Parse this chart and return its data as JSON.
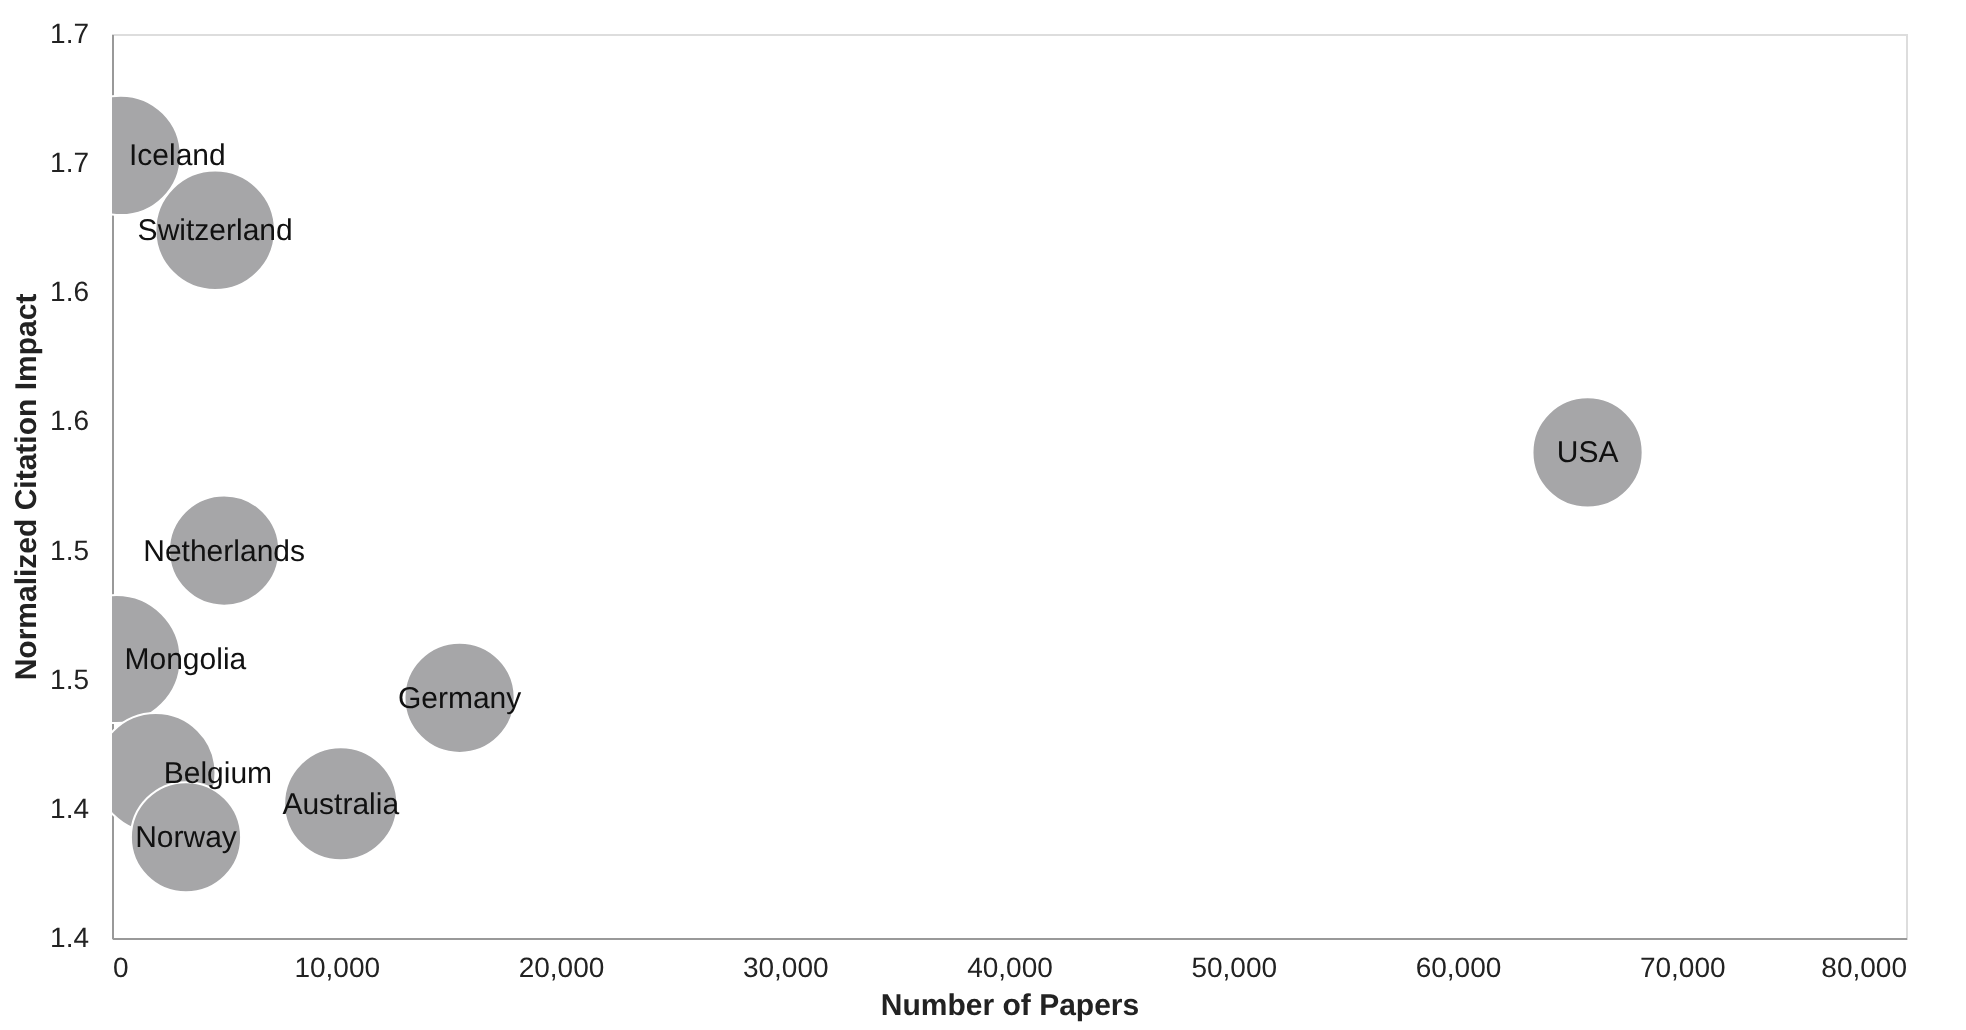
{
  "chart_data": {
    "type": "bubble",
    "xlabel": "Number of Papers",
    "ylabel": "Normalized Citation Impact",
    "x": [
      400,
      4600,
      5000,
      200,
      1950,
      3300,
      10200,
      15500,
      65800
    ],
    "values": [
      1.653,
      1.624,
      1.5,
      1.458,
      1.414,
      1.389,
      1.402,
      1.443,
      1.538
    ],
    "sizes": [
      0.87,
      0.87,
      0.74,
      1,
      0.87,
      0.74,
      0.78,
      0.74,
      0.74
    ],
    "color": "#a6a6a8",
    "annotations": [
      {
        "text": "Iceland",
        "x": 400,
        "y": 1.653
      },
      {
        "text": "Switzerland",
        "x": 4600,
        "y": 1.624
      },
      {
        "text": "Netherlands",
        "x": 5000,
        "y": 1.5
      },
      {
        "text": "Mongolia",
        "x": 200,
        "y": 1.458
      },
      {
        "text": "Belgium",
        "x": 1950,
        "y": 1.414
      },
      {
        "text": "Norway",
        "x": 3300,
        "y": 1.389
      },
      {
        "text": "Australia",
        "x": 10200,
        "y": 1.402
      },
      {
        "text": "Germany",
        "x": 15500,
        "y": 1.443
      },
      {
        "text": "USA",
        "x": 65800,
        "y": 1.538
      }
    ],
    "xlim": [
      0,
      80000
    ],
    "xticks": [
      0,
      {
        "value": 10000,
        "label": "10,000"
      },
      {
        "value": 20000,
        "label": "20,000"
      },
      {
        "value": 30000,
        "label": "30,000"
      },
      {
        "value": 40000,
        "label": "40,000"
      },
      {
        "value": 50000,
        "label": "50,000"
      },
      {
        "value": 60000,
        "label": "60,000"
      },
      {
        "value": 70000,
        "label": "70,000"
      },
      {
        "value": 80000,
        "label": "80,000"
      }
    ],
    "ylim": [
      1.35,
      1.7
    ],
    "yticks": [
      {
        "value": 1.35,
        "label": "1.4"
      },
      {
        "value": 1.4,
        "label": "1.4"
      },
      {
        "value": 1.45,
        "label": "1.5"
      },
      {
        "value": 1.5,
        "label": "1.5"
      },
      {
        "value": 1.55,
        "label": "1.6"
      },
      {
        "value": 1.6,
        "label": "1.6"
      },
      {
        "value": 1.65,
        "label": "1.7"
      },
      {
        "value": 1.7,
        "label": "1.7"
      }
    ],
    "grid": false,
    "legend": false
  }
}
